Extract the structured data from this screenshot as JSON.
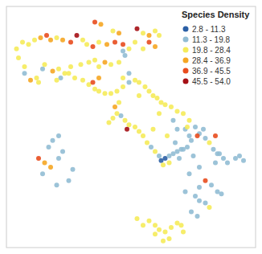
{
  "chart_data": {
    "type": "scatter",
    "title": "Species Density",
    "xlim": [
      6.4,
      18.8
    ],
    "ylim": [
      36.5,
      47.3
    ],
    "tick_labels": false,
    "legend": "top-right",
    "series": [
      {
        "name": "2.8 - 11.3",
        "color": "#2b5fa5",
        "x": [
          14.3,
          14.1
        ],
        "values": [
          40.5,
          40.4
        ]
      },
      {
        "name": "11.3 - 19.8",
        "color": "#91bcd4",
        "x": [
          7.3,
          8.2,
          9.1,
          12.3,
          12.5,
          15.8,
          16.0,
          16.3,
          16.7,
          16.9,
          17.2,
          17.4,
          17.8,
          18.0,
          18.2,
          16.2,
          15.6,
          15.4,
          15.1,
          14.9,
          14.7,
          14.5,
          14.0,
          13.6,
          12.1,
          15.3,
          15.8,
          16.0,
          16.3,
          16.0,
          16.6,
          16.9,
          17.1,
          15.6,
          15.9,
          9.0,
          9.2,
          8.5,
          8.7,
          9.0,
          12.2,
          12.5,
          15.5,
          15.3,
          17.0,
          8.2,
          8.9,
          9.5,
          9.7,
          14.7,
          15.0,
          15.5,
          16.0,
          16.8,
          15.7,
          15.2,
          14.8,
          14.9
        ],
        "values": [
          44.3,
          44.5,
          44.1,
          45.1,
          43.9,
          41.9,
          41.6,
          41.4,
          40.9,
          40.7,
          40.5,
          40.3,
          40.5,
          40.6,
          40.4,
          41.8,
          41.3,
          41.0,
          40.9,
          40.8,
          40.7,
          40.6,
          40.6,
          41.0,
          42.4,
          39.0,
          38.8,
          38.6,
          38.5,
          39.2,
          39.3,
          39.0,
          38.9,
          38.1,
          37.9,
          40.5,
          40.8,
          41.0,
          41.3,
          41.5,
          45.3,
          44.3,
          41.5,
          41.8,
          40.7,
          39.8,
          39.3,
          39.5,
          40.0,
          42.2,
          40.5,
          39.8,
          40.1,
          40.3,
          40.6,
          40.9,
          41.2,
          41.8
        ]
      },
      {
        "name": "19.8 - 28.4",
        "color": "#f5eb5a",
        "x": [
          7.9,
          8.0,
          8.9,
          9.3,
          9.6,
          10.1,
          10.5,
          10.8,
          11.0,
          11.6,
          12.0,
          12.5,
          11.0,
          10.4,
          10.2,
          8.9,
          7.8,
          7.5,
          7.2,
          6.9,
          7.0,
          7.3,
          8.3,
          9.0,
          9.5,
          9.8,
          10.2,
          10.5,
          10.8,
          11.0,
          11.3,
          11.6,
          11.9,
          12.2,
          12.8,
          13.0,
          13.3,
          13.5,
          13.7,
          13.9,
          14.1,
          14.3,
          14.6,
          14.9,
          15.2,
          15.5,
          16.5,
          13.8,
          13.4,
          13.2,
          13.0,
          12.8,
          12.5,
          12.3,
          11.9,
          11.7,
          11.5,
          16.5,
          14.5,
          14.2,
          13.8,
          14.0,
          14.3,
          14.6,
          14.9,
          15.1,
          15.2,
          14.5,
          14.2,
          13.8,
          13.2,
          12.9,
          13.5,
          13.8,
          14.0,
          13.2,
          11.7,
          13.2,
          12.8,
          12.2,
          12.0,
          13.0,
          14.0,
          13.7,
          14.4,
          15.4
        ],
        "values": [
          44.1,
          43.9,
          44.0,
          44.3,
          44.6,
          44.7,
          44.8,
          44.9,
          44.6,
          44.7,
          44.8,
          45.4,
          45.7,
          45.6,
          45.8,
          45.9,
          45.8,
          45.6,
          45.7,
          45.4,
          45.0,
          44.6,
          44.7,
          44.5,
          44.3,
          44.1,
          44.0,
          43.8,
          43.6,
          43.5,
          43.4,
          43.4,
          43.5,
          43.7,
          44.0,
          43.9,
          43.7,
          43.5,
          43.3,
          43.2,
          43.0,
          42.9,
          42.8,
          42.6,
          42.5,
          42.2,
          41.2,
          40.8,
          41.2,
          41.5,
          41.7,
          41.9,
          42.0,
          42.2,
          42.5,
          42.3,
          42.1,
          38.3,
          40.3,
          40.2,
          37.5,
          37.3,
          37.2,
          37.4,
          37.6,
          37.5,
          37.2,
          36.9,
          36.8,
          37.1,
          37.5,
          37.8,
          37.7,
          46.2,
          46.0,
          46.1,
          46.2,
          45.4,
          45.7,
          44.1,
          43.0,
          43.3,
          42.5,
          41.8,
          41.5,
          41.9
        ]
      },
      {
        "name": "28.4 - 36.9",
        "color": "#f5a623",
        "x": [
          7.6,
          8.7,
          11.3,
          11.4,
          9.2,
          8.6,
          8.1,
          8.3,
          8.6,
          13.5,
          12.0,
          11.1,
          13.8,
          11.0,
          11.8
        ],
        "values": [
          44.0,
          44.4,
          44.8,
          45.6,
          45.8,
          45.8,
          45.9,
          40.3,
          40.1,
          46.0,
          46.1,
          46.5,
          45.5,
          44.1,
          42.8
        ]
      },
      {
        "name": "36.9 - 45.5",
        "color": "#e84c1e",
        "x": [
          12.2,
          11.8,
          10.7,
          9.6,
          8.4,
          15.9,
          16.3,
          8.0,
          10.8,
          13.5,
          10.7,
          16.8
        ],
        "values": [
          45.6,
          45.7,
          45.5,
          45.7,
          46.0,
          41.5,
          39.5,
          40.5,
          46.6,
          45.7,
          43.9,
          41.5
        ]
      },
      {
        "name": "45.5 - 54.0",
        "color": "#a50f15",
        "x": [
          9.9,
          12.9,
          12.4
        ],
        "values": [
          46.0,
          46.3,
          41.8
        ]
      }
    ]
  }
}
